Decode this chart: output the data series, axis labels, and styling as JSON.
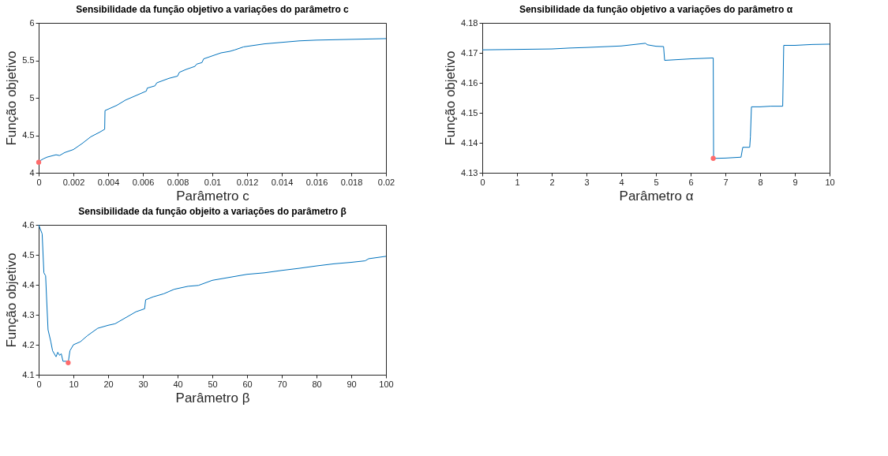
{
  "chart_data": [
    {
      "type": "line",
      "title": "Sensibilidade da função objetivo a variações do parâmetro c",
      "xlabel": "Parâmetro c",
      "ylabel": "Função objetivo",
      "xlim": [
        0,
        0.02
      ],
      "xticks": [
        0,
        0.002,
        0.004,
        0.006,
        0.008,
        0.01,
        0.012,
        0.014,
        0.016,
        0.018,
        0.02
      ],
      "ylim": [
        4,
        6
      ],
      "yticks": [
        4,
        4.5,
        5,
        5.5,
        6
      ],
      "series": [
        {
          "color": "#0072bd",
          "x": [
            0,
            0.0003,
            0.0005,
            0.001,
            0.0012,
            0.0015,
            0.002,
            0.0025,
            0.003,
            0.0035,
            0.0038,
            0.00382,
            0.0045,
            0.005,
            0.0055,
            0.006,
            0.0062,
            0.00625,
            0.0067,
            0.0068,
            0.0075,
            0.008,
            0.0081,
            0.0085,
            0.009,
            0.0091,
            0.0094,
            0.0095,
            0.01,
            0.0105,
            0.011,
            0.0113,
            0.0118,
            0.013,
            0.014,
            0.015,
            0.016,
            0.018,
            0.02
          ],
          "values": [
            4.15,
            4.19,
            4.21,
            4.24,
            4.23,
            4.27,
            4.31,
            4.39,
            4.48,
            4.54,
            4.58,
            4.83,
            4.9,
            4.97,
            5.02,
            5.07,
            5.09,
            5.13,
            5.16,
            5.2,
            5.26,
            5.29,
            5.34,
            5.38,
            5.42,
            5.45,
            5.47,
            5.52,
            5.56,
            5.6,
            5.62,
            5.64,
            5.68,
            5.72,
            5.74,
            5.76,
            5.77,
            5.78,
            5.79
          ]
        },
        {
          "type": "scatter",
          "marker": "circle",
          "color": "#ff6b6b",
          "x": [
            0
          ],
          "values": [
            4.14
          ]
        }
      ]
    },
    {
      "type": "line",
      "title": "Sensibilidade da função objetivo a variações do parâmetro α",
      "xlabel": "Parâmetro α",
      "ylabel": "Função objetivo",
      "xlim": [
        0,
        10
      ],
      "xticks": [
        0,
        1,
        2,
        3,
        4,
        5,
        6,
        7,
        8,
        9,
        10
      ],
      "ylim": [
        4.13,
        4.18
      ],
      "yticks": [
        4.13,
        4.14,
        4.15,
        4.16,
        4.17,
        4.18
      ],
      "series": [
        {
          "color": "#0072bd",
          "x": [
            0,
            2,
            2.5,
            3,
            4,
            4.7,
            4.75,
            5.0,
            5.22,
            5.25,
            6,
            6.65,
            6.66,
            7.0,
            7.45,
            7.5,
            7.7,
            7.72,
            7.75,
            8.0,
            8.3,
            8.65,
            8.68,
            9,
            9.5,
            10
          ],
          "values": [
            4.171,
            4.1713,
            4.1716,
            4.1718,
            4.1723,
            4.1732,
            4.1727,
            4.1722,
            4.1721,
            4.1675,
            4.168,
            4.1683,
            4.1348,
            4.1349,
            4.1352,
            4.1385,
            4.1385,
            4.142,
            4.152,
            4.152,
            4.1522,
            4.1522,
            4.1725,
            4.1725,
            4.1728,
            4.1729
          ]
        },
        {
          "type": "scatter",
          "marker": "circle",
          "color": "#ff6b6b",
          "x": [
            6.65
          ],
          "values": [
            4.1348
          ]
        }
      ]
    },
    {
      "type": "line",
      "title": "Sensibilidade da função objeito a variações do parâmetro  β",
      "xlabel": "Parâmetro β",
      "ylabel": "Função objetivo",
      "xlim": [
        0,
        100
      ],
      "xticks": [
        0,
        10,
        20,
        30,
        40,
        50,
        60,
        70,
        80,
        90,
        100
      ],
      "ylim": [
        4.1,
        4.6
      ],
      "yticks": [
        4.1,
        4.2,
        4.3,
        4.4,
        4.5,
        4.6
      ],
      "series": [
        {
          "color": "#0072bd",
          "x": [
            0,
            1,
            1.5,
            2,
            2.3,
            2.7,
            3.5,
            4,
            5,
            5.5,
            6,
            6.5,
            7,
            8,
            8.5,
            9,
            10,
            12,
            14,
            17,
            20,
            22,
            25,
            28,
            30.5,
            30.8,
            33,
            36,
            39,
            43,
            46,
            50,
            55,
            60,
            65,
            70,
            75,
            80,
            85,
            90,
            94,
            95,
            100
          ],
          "values": [
            4.6,
            4.57,
            4.44,
            4.43,
            4.35,
            4.25,
            4.21,
            4.18,
            4.16,
            4.175,
            4.165,
            4.17,
            4.145,
            4.145,
            4.14,
            4.18,
            4.2,
            4.21,
            4.23,
            4.255,
            4.265,
            4.27,
            4.29,
            4.31,
            4.32,
            4.35,
            4.36,
            4.37,
            4.385,
            4.395,
            4.398,
            4.415,
            4.425,
            4.435,
            4.44,
            4.448,
            4.455,
            4.463,
            4.47,
            4.475,
            4.48,
            4.487,
            4.495
          ]
        },
        {
          "type": "scatter",
          "marker": "circle",
          "color": "#ff6b6b",
          "x": [
            8.5
          ],
          "values": [
            4.14
          ]
        }
      ]
    }
  ]
}
